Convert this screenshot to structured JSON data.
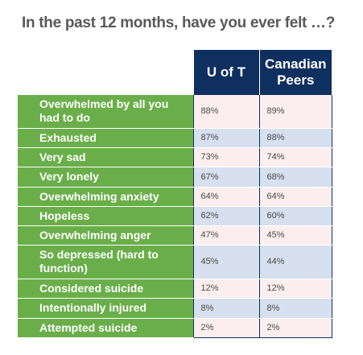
{
  "title": "In the past 12 months, have you ever felt …?",
  "headers": {
    "col1": "U of T",
    "col2_line1": "Canadian",
    "col2_line2": "Peers"
  },
  "colors": {
    "label_bg": "#6aae4a",
    "header_bg": "#0f2f5f",
    "row_odd": "#fceeee",
    "row_even": "#d7e0ef"
  },
  "chart_data": {
    "type": "table",
    "title": "In the past 12 months, have you ever felt …?",
    "columns": [
      "U of T",
      "Canadian Peers"
    ],
    "rows": [
      {
        "label": "Overwhelmed by all you had to do",
        "u_of_t": "88%",
        "peers": "89%"
      },
      {
        "label": "Exhausted",
        "u_of_t": "87%",
        "peers": "88%"
      },
      {
        "label": "Very sad",
        "u_of_t": "73%",
        "peers": "74%"
      },
      {
        "label": "Very lonely",
        "u_of_t": "67%",
        "peers": "68%"
      },
      {
        "label": "Overwhelming anxiety",
        "u_of_t": "64%",
        "peers": "64%"
      },
      {
        "label": "Hopeless",
        "u_of_t": "62%",
        "peers": "60%"
      },
      {
        "label": "Overwhelming anger",
        "u_of_t": "47%",
        "peers": "45%"
      },
      {
        "label": "So depressed (hard to function)",
        "u_of_t": "45%",
        "peers": "44%"
      },
      {
        "label": "Considered suicide",
        "u_of_t": "12%",
        "peers": "12%"
      },
      {
        "label": "Intentionally injured",
        "u_of_t": "8%",
        "peers": "8%"
      },
      {
        "label": "Attempted suicide",
        "u_of_t": "2%",
        "peers": "2%"
      }
    ]
  }
}
